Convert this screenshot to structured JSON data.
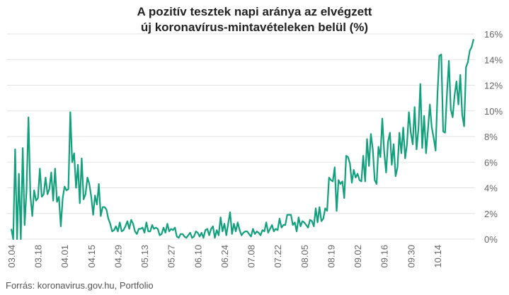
{
  "title_line1": "A pozitív tesztek napi aránya az elvégzett",
  "title_line2": "új koronavírus-mintavételeken belül (%)",
  "source": "Forrás: koronavirus.gov.hu, Portfolio",
  "colors": {
    "line": "#13a07d",
    "grid": "#e3e3e3",
    "text": "#666666"
  },
  "chart_data": {
    "type": "line",
    "title": "A pozitív tesztek napi aránya az elvégzett új koronavírus-mintavételeken belül (%)",
    "x_ticks": [
      "03.04",
      "03.18",
      "04.01",
      "04.15",
      "04.29",
      "05.13",
      "05.27",
      "06.10",
      "06.24",
      "07.08",
      "07.22",
      "08.05",
      "08.19",
      "09.02",
      "09.16",
      "09.30",
      "10.14"
    ],
    "y_ticks": [
      "0%",
      "2%",
      "4%",
      "6%",
      "8%",
      "10%",
      "12%",
      "14%",
      "16%"
    ],
    "ylim": [
      0,
      16
    ],
    "y_axis_position": "right",
    "grid": "horizontal",
    "x_start": "03.04",
    "x_end": "10.21",
    "series": [
      {
        "values": [
          0.8,
          0,
          7,
          0,
          5.1,
          0,
          7.1,
          1.1,
          3.8,
          9.5,
          3.4,
          1.8,
          3.8,
          3,
          3.2,
          5.5,
          3.3,
          3.5,
          4.8,
          3.5,
          3.9,
          5.2,
          3,
          5.5,
          2.9,
          3.3,
          1,
          3.2,
          4.1,
          3.8,
          3.9,
          9.9,
          6,
          6.7,
          4,
          5.8,
          2.8,
          6.3,
          3.1,
          3.5,
          4.8,
          4.3,
          3.3,
          1.9,
          3.4,
          2.7,
          4.3,
          1.8,
          2.5,
          2.5,
          2.3,
          1.6,
          1.2,
          0.6,
          0.7,
          1,
          0.6,
          1.3,
          0.6,
          0.7,
          1,
          1.4,
          0.8,
          1.5,
          1.2,
          0.6,
          0.4,
          0.8,
          0.8,
          0.9,
          0.5,
          1.3,
          0.6,
          0.6,
          1.1,
          0.8,
          0.9,
          0.8,
          0.3,
          0.4,
          0.9,
          0.5,
          1.2,
          0.6,
          0.8,
          0.7,
          0.9,
          0.2,
          0.1,
          0.4,
          0.4,
          0.2,
          0.1,
          0.3,
          0.5,
          0.1,
          0.2,
          0.6,
          0.5,
          0.2,
          0.5,
          0.1,
          0.7,
          0.8,
          0.3,
          0.8,
          1,
          0.1,
          0.7,
          0.3,
          1.7,
          0.6,
          1.2,
          0.3,
          1.2,
          2.1,
          0.4,
          1.2,
          0.6,
          1.3,
          0.7,
          0.3,
          0.5,
          0.6,
          0.6,
          0.4,
          0.2,
          0.8,
          0.4,
          0.6,
          0.5,
          0.3,
          0.7,
          0.6,
          1.3,
          0.5,
          0.8,
          1.1,
          0.6,
          0.8,
          0.7,
          1.6,
          0.9,
          1.1,
          1.1,
          1.9,
          1.9,
          1.9,
          1.1,
          1.3,
          0.6,
          1.7,
          1,
          1.4,
          1.3,
          1.1,
          0.9,
          1.5,
          1.4,
          1,
          2.4,
          1.3,
          2.5,
          1.4,
          1.6,
          2.4,
          2.2,
          4.8,
          4.6,
          4.5,
          5.6,
          2.2,
          4.6,
          4.3,
          4.5,
          3.2,
          6.5,
          6.4,
          5.9,
          4.4,
          5.4,
          4.8,
          5.1,
          4.6,
          4.5,
          6.5,
          4.5,
          7.8,
          5.7,
          8.2,
          7,
          4.6,
          4.3,
          7.2,
          6.4,
          9.4,
          6.8,
          5.2,
          7.6,
          8.3,
          5.8,
          7.4,
          4.9,
          5.6,
          8.3,
          6.7,
          8.7,
          6.3,
          7.4,
          9.9,
          8.3,
          7.4,
          10.3,
          7,
          8.6,
          12.1,
          7.1,
          9.6,
          6.7,
          8.5,
          10.5,
          8.7,
          7.9,
          6.9,
          11.2,
          14.3,
          14.4,
          8.4,
          8.3,
          11.4,
          13.9,
          10.1,
          9.5,
          11.2,
          12.3,
          10.5,
          12.8,
          9.7,
          8.8,
          13.4,
          13.8,
          14.7,
          15,
          15.6
        ]
      }
    ]
  }
}
